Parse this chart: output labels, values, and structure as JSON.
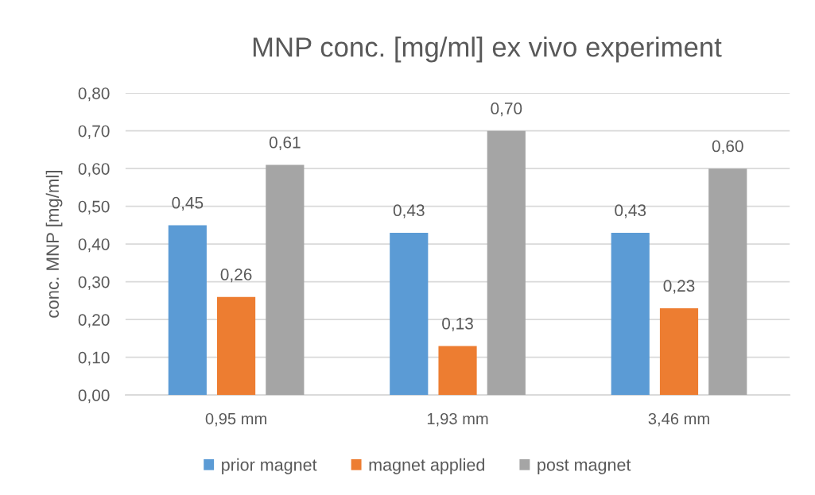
{
  "chart_data": {
    "type": "bar",
    "title": "MNP conc. [mg/ml] ex vivo experiment",
    "ylabel": "conc. MNP [mg/ml]",
    "categories": [
      "0,95 mm",
      "1,93 mm",
      "3,46 mm"
    ],
    "series": [
      {
        "name": "prior magnet",
        "color": "#5b9bd5",
        "values": [
          0.45,
          0.43,
          0.43
        ],
        "value_labels": [
          "0,45",
          "0,43",
          "0,43"
        ]
      },
      {
        "name": "magnet applied",
        "color": "#ed7d31",
        "values": [
          0.26,
          0.13,
          0.23
        ],
        "value_labels": [
          "0,26",
          "0,13",
          "0,23"
        ]
      },
      {
        "name": "post magnet",
        "color": "#a5a5a5",
        "values": [
          0.61,
          0.7,
          0.6
        ],
        "value_labels": [
          "0,61",
          "0,70",
          "0,60"
        ]
      }
    ],
    "ylim": [
      0,
      0.8
    ],
    "yticks": [
      {
        "value": 0,
        "label": "0,00"
      },
      {
        "value": 0.1,
        "label": "0,10"
      },
      {
        "value": 0.2,
        "label": "0,20"
      },
      {
        "value": 0.3,
        "label": "0,30"
      },
      {
        "value": 0.4,
        "label": "0,40"
      },
      {
        "value": 0.5,
        "label": "0,50"
      },
      {
        "value": 0.6,
        "label": "0,60"
      },
      {
        "value": 0.7,
        "label": "0,70"
      },
      {
        "value": 0.8,
        "label": "0,80"
      }
    ],
    "grid": "y",
    "legend": "bottom"
  }
}
